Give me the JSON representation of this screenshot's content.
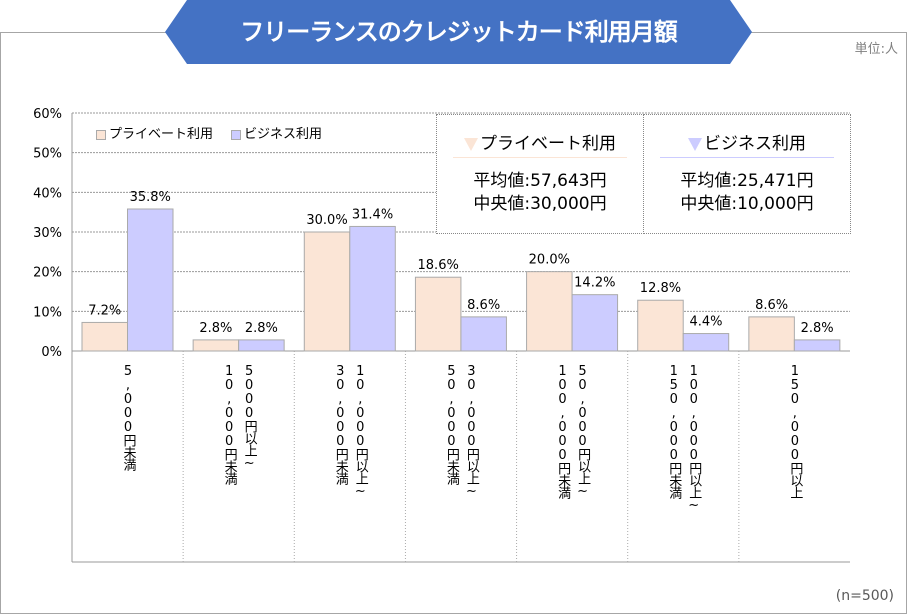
{
  "title": "フリーランスのクレジットカード利用月額",
  "unit_label": "単位:人",
  "sample_label": "(n=500)",
  "colors": {
    "banner": "#4472c4",
    "private": "#fbe5d6",
    "business": "#ccccff"
  },
  "stats": [
    {
      "name": "プライベート利用",
      "mean": "平均値:57,643円",
      "median": "中央値:30,000円",
      "icon": "triangle-down-icon"
    },
    {
      "name": "ビジネス利用",
      "mean": "平均値:25,471円",
      "median": "中央値:10,000円",
      "icon": "triangle-down-icon"
    }
  ],
  "chart_data": {
    "type": "bar",
    "ylim": [
      0,
      60
    ],
    "yticks": [
      "0%",
      "10%",
      "20%",
      "30%",
      "40%",
      "50%",
      "60%"
    ],
    "grid": true,
    "legend_placement": "top-left",
    "categories": [
      [
        "5,000円未満"
      ],
      [
        "5000円以上~",
        "10,000円未満"
      ],
      [
        "10,000円以上~",
        "30,000円未満"
      ],
      [
        "30,000円以上~",
        "50,000円未満"
      ],
      [
        "50,000円以上~",
        "100,000円未満"
      ],
      [
        "100,000円以上~",
        "150,000円未満"
      ],
      [
        "150,000円以上"
      ]
    ],
    "series": [
      {
        "name": "プライベート利用",
        "values": [
          7.2,
          2.8,
          30.0,
          18.6,
          20.0,
          12.8,
          8.6
        ],
        "labels": [
          "7.2%",
          "2.8%",
          "30.0%",
          "18.6%",
          "20.0%",
          "12.8%",
          "8.6%"
        ]
      },
      {
        "name": "ビジネス利用",
        "values": [
          35.8,
          2.8,
          31.4,
          8.6,
          14.2,
          4.4,
          2.8
        ],
        "labels": [
          "35.8%",
          "2.8%",
          "31.4%",
          "8.6%",
          "14.2%",
          "4.4%",
          "2.8%"
        ]
      }
    ]
  }
}
